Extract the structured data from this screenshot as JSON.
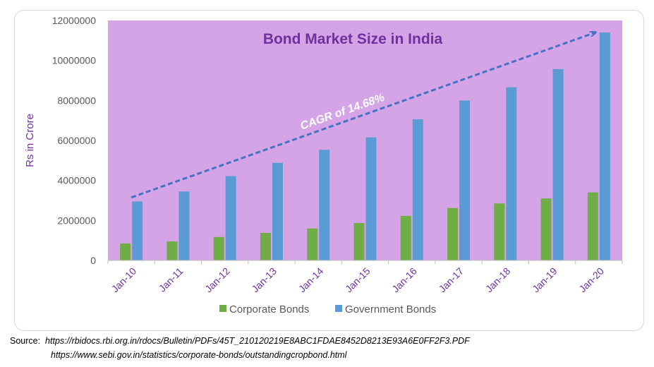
{
  "chart_data": {
    "type": "bar",
    "title": "Bond Market Size in India",
    "ylabel": "Rs in Crore",
    "xlabel": "",
    "categories": [
      "Jan-10",
      "Jan-11",
      "Jan-12",
      "Jan-13",
      "Jan-14",
      "Jan-15",
      "Jan-16",
      "Jan-17",
      "Jan-18",
      "Jan-19",
      "Jan-20"
    ],
    "series": [
      {
        "name": "Corporate Bonds",
        "color": "#70ad47",
        "values": [
          850000,
          950000,
          1170000,
          1380000,
          1600000,
          1870000,
          2230000,
          2620000,
          2850000,
          3100000,
          3400000
        ]
      },
      {
        "name": "Government Bonds",
        "color": "#5b9bd5",
        "values": [
          2950000,
          3450000,
          4220000,
          4880000,
          5530000,
          6150000,
          7060000,
          8000000,
          8660000,
          9570000,
          11400000
        ]
      }
    ],
    "ylim": [
      0,
      12000000
    ],
    "yticks": [
      "0",
      "2000000",
      "4000000",
      "6000000",
      "8000000",
      "10000000",
      "12000000"
    ],
    "legend_position": "bottom",
    "plot_background": "#d4a4e6",
    "title_color": "#7030a0",
    "label_color": "#7030a0",
    "annotation": {
      "text": "CAGR  of 14.68%",
      "style": "dashed-arrow",
      "color": "#4472c4",
      "from": {
        "category": "Jan-10",
        "value": 3150000
      },
      "to": {
        "category": "Jan-20",
        "value": 11400000
      }
    },
    "grid": false
  },
  "source": {
    "label": "Source:",
    "lines": [
      "https://rbidocs.rbi.org.in/rdocs/Bulletin/PDFs/45T_210120219E8ABC1FDAE8452D8213E93A6E0FF2F3.PDF",
      "https://www.sebi.gov.in/statistics/corporate-bonds/outstandingcropbond.html"
    ]
  }
}
